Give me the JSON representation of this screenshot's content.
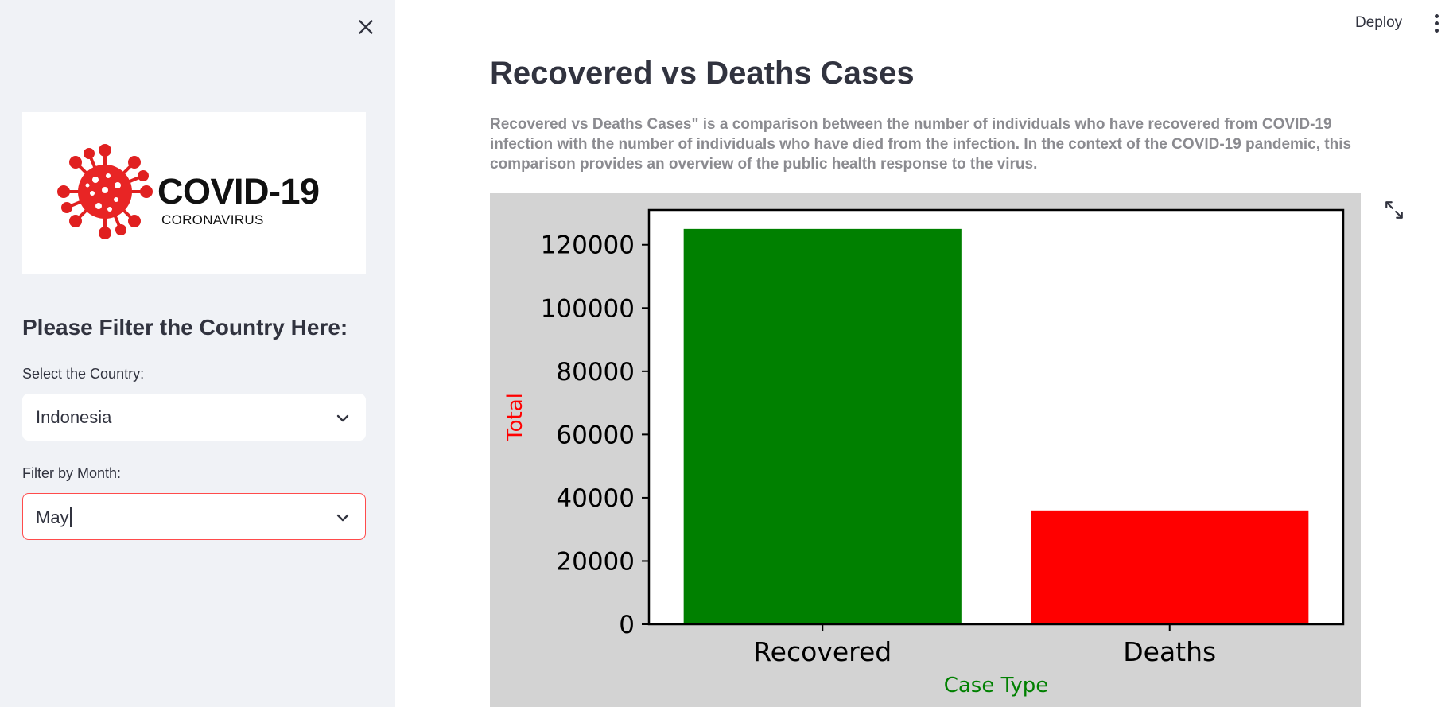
{
  "sidebar": {
    "logo": {
      "title": "COVID-19",
      "subtitle": "CORONAVIRUS"
    },
    "heading": "Please Filter the Country Here:",
    "country_label": "Select the Country:",
    "country_value": "Indonesia",
    "month_label": "Filter by Month:",
    "month_value": "May"
  },
  "header": {
    "deploy_label": "Deploy"
  },
  "main": {
    "title": "Recovered vs Deaths Cases",
    "description": "Recovered vs Deaths Cases\" is a comparison between the number of individuals who have recovered from COVID-19 infection with the number of individuals who have died from the infection. In the context of the COVID-19 pandemic, this comparison provides an overview of the public health response to the virus."
  },
  "colors": {
    "accent": "#ff4b4b",
    "recovered": "#008000",
    "deaths": "#ff0000",
    "chart_bg": "#d3d3d3"
  },
  "icons": [
    "close-icon",
    "chevron-down-icon",
    "more-vertical-icon",
    "expand-icon",
    "covid-virus-icon"
  ],
  "chart_data": {
    "type": "bar",
    "categories": [
      "Recovered",
      "Deaths"
    ],
    "values": [
      125000,
      36000
    ],
    "colors": [
      "#008000",
      "#ff0000"
    ],
    "xlabel": "Case Type",
    "ylabel": "Total",
    "ylim": [
      0,
      131000
    ],
    "yticks": [
      0,
      20000,
      40000,
      60000,
      80000,
      100000,
      120000
    ],
    "xlabel_color": "#008000",
    "ylabel_color": "#ff0000",
    "grid": false
  }
}
